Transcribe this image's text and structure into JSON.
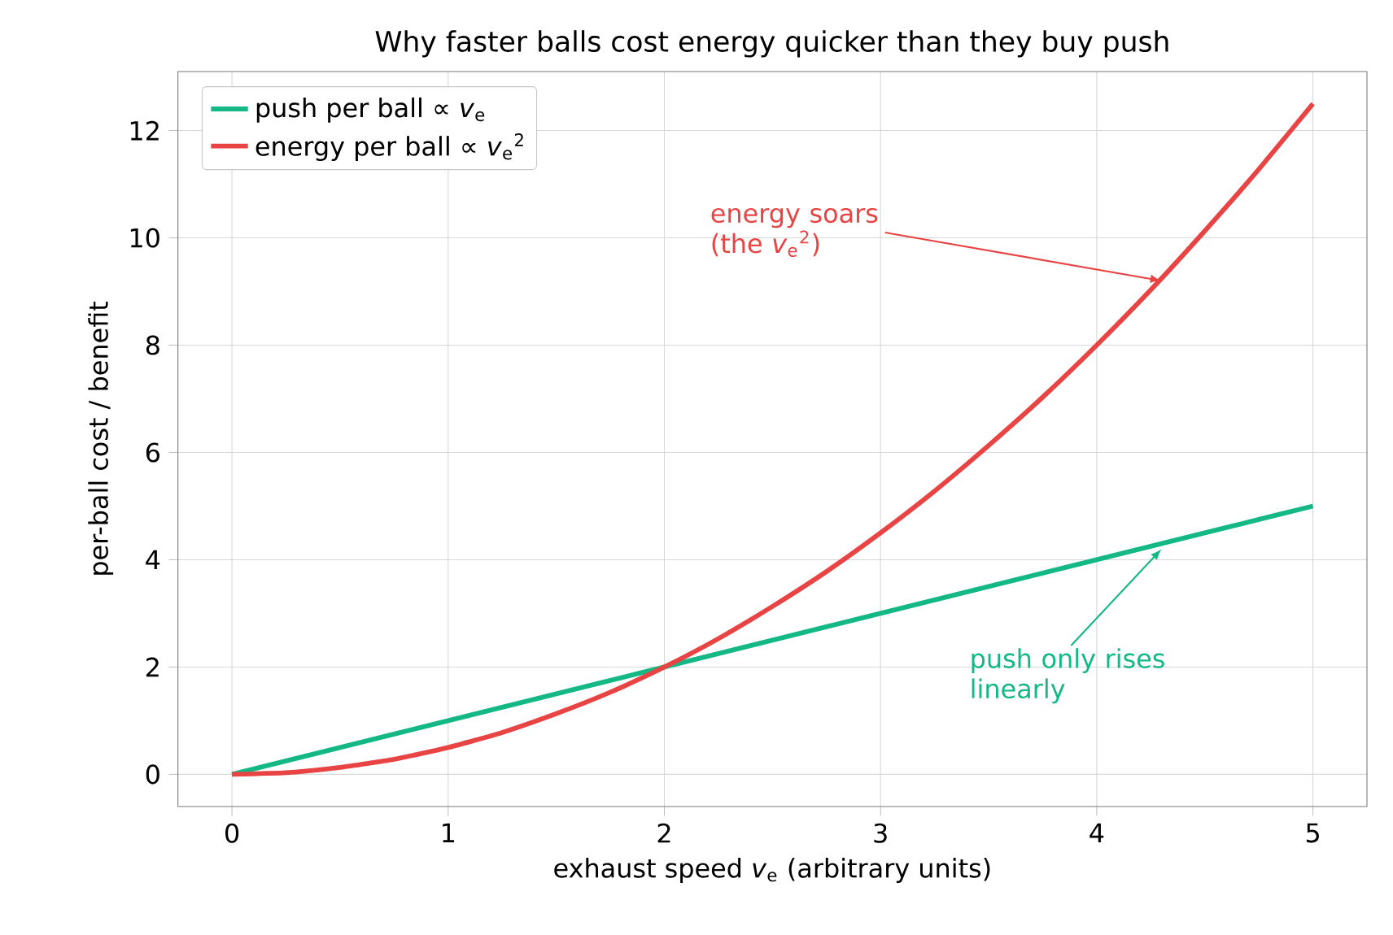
{
  "chart_data": {
    "type": "line",
    "title": "Why faster balls cost energy quicker than they buy push",
    "xlabel": "exhaust speed *v*$_{e}$  (arbitrary units)",
    "ylabel": "per-ball cost / benefit",
    "x": [
      0,
      0.25,
      0.5,
      0.75,
      1,
      1.25,
      1.5,
      1.75,
      2,
      2.25,
      2.5,
      2.75,
      3,
      3.25,
      3.5,
      3.75,
      4,
      4.25,
      4.5,
      4.75,
      5
    ],
    "series": [
      {
        "name": "push per ball   ∝ *v*$_{e}$",
        "color": "#14b884",
        "values": [
          0,
          0.25,
          0.5,
          0.75,
          1,
          1.25,
          1.5,
          1.75,
          2,
          2.25,
          2.5,
          2.75,
          3,
          3.25,
          3.5,
          3.75,
          4,
          4.25,
          4.5,
          4.75,
          5
        ]
      },
      {
        "name": "energy per ball   ∝ *v*$_{e}$$^{2}$",
        "color": "#e84444",
        "values": [
          0,
          0.03,
          0.13,
          0.28,
          0.5,
          0.78,
          1.13,
          1.53,
          2,
          2.53,
          3.13,
          3.78,
          4.5,
          5.28,
          6.13,
          7.03,
          8,
          9.03,
          10.13,
          11.28,
          12.5
        ]
      }
    ],
    "annotations": [
      {
        "text": "energy soars (the *v*$_{e}$$^{2}$)",
        "x": 4.3,
        "y": 9.2
      },
      {
        "text": "push only rises linearly",
        "x": 4.3,
        "y": 4.2
      }
    ],
    "xlim": [
      -0.25,
      5.25
    ],
    "ylim": [
      -0.6,
      13.1
    ],
    "xticks": [
      0,
      1,
      2,
      3,
      4,
      5
    ],
    "yticks": [
      0,
      2,
      4,
      6,
      8,
      10,
      12
    ],
    "grid": true,
    "legend": "top left",
    "marker": "none",
    "line_style": "solid"
  }
}
